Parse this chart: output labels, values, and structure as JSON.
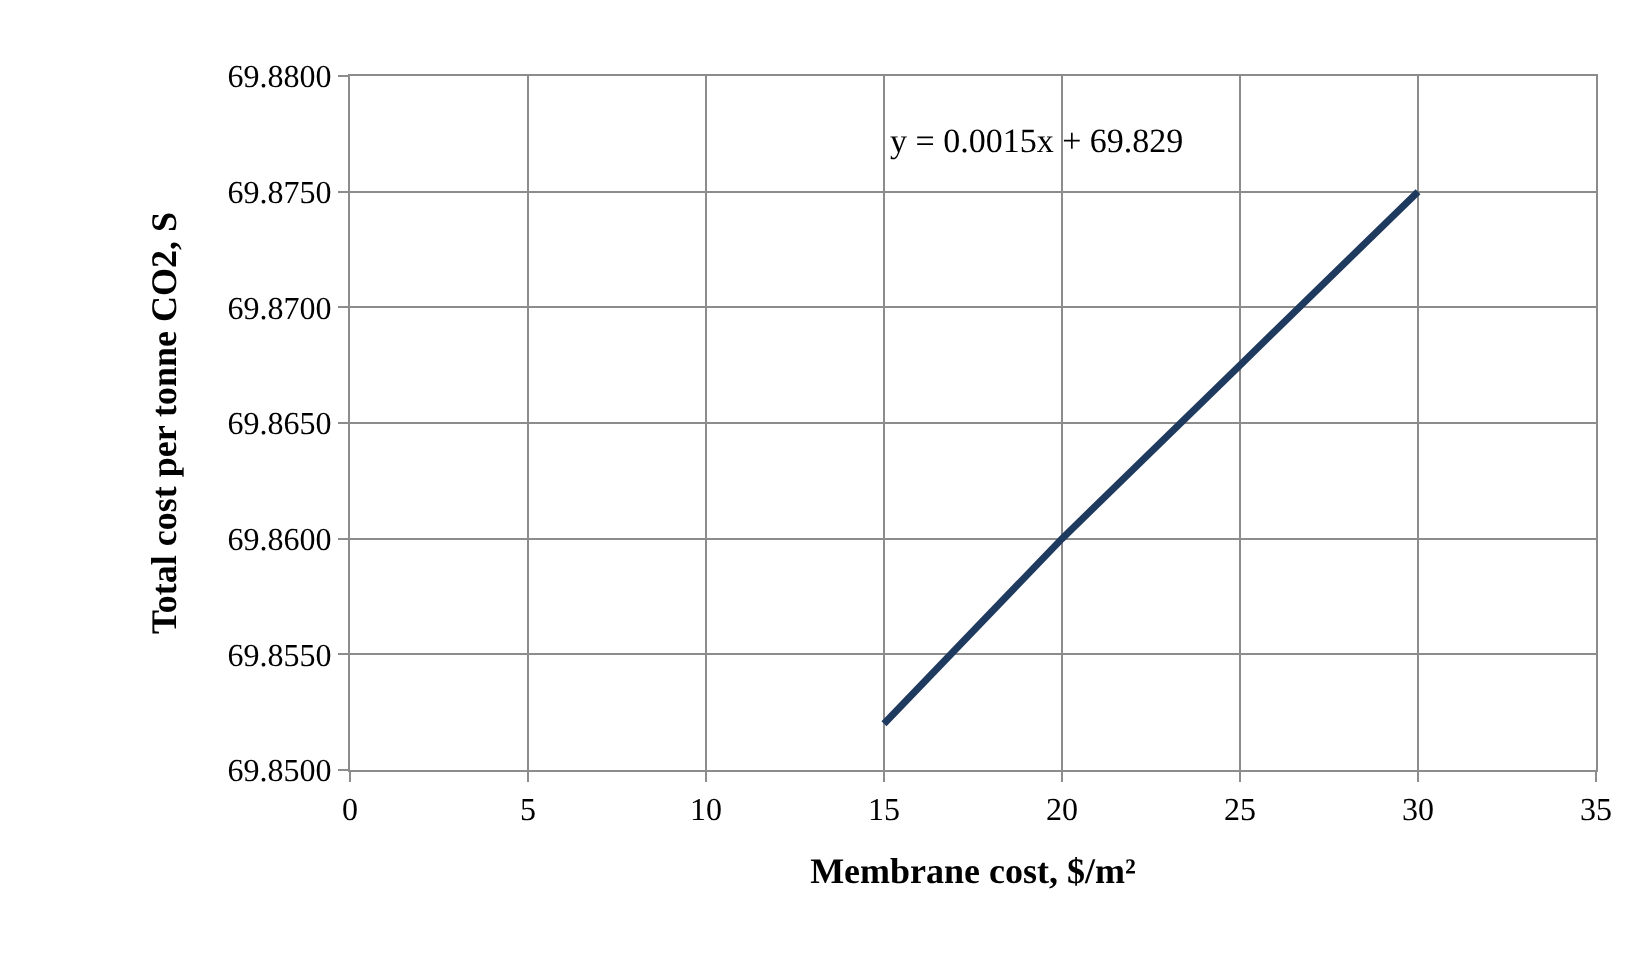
{
  "chart_data": {
    "type": "line",
    "xlabel": "Membrane cost, $/m²",
    "ylabel": "Total cost per tonne CO2, S",
    "x": [
      15,
      20,
      25,
      30
    ],
    "series": [
      {
        "color": "#1f3a5f",
        "values": [
          69.852,
          69.86,
          69.8675,
          69.875
        ]
      }
    ],
    "xlim": [
      0,
      35
    ],
    "xticks": [
      0,
      5,
      10,
      15,
      20,
      25,
      30,
      35
    ],
    "ylim": [
      69.85,
      69.88
    ],
    "yticks": [
      {
        "value": 69.85,
        "label": "69.8500"
      },
      {
        "value": 69.855,
        "label": "69.8550"
      },
      {
        "value": 69.86,
        "label": "69.8600"
      },
      {
        "value": 69.865,
        "label": "69.8650"
      },
      {
        "value": 69.87,
        "label": "69.8700"
      },
      {
        "value": 69.875,
        "label": "69.8750"
      },
      {
        "value": 69.88,
        "label": "69.8800"
      }
    ],
    "grid": true,
    "marker": "none",
    "line_style": "solid",
    "annotations": [
      "y = 0.0015x + 69.829"
    ]
  }
}
